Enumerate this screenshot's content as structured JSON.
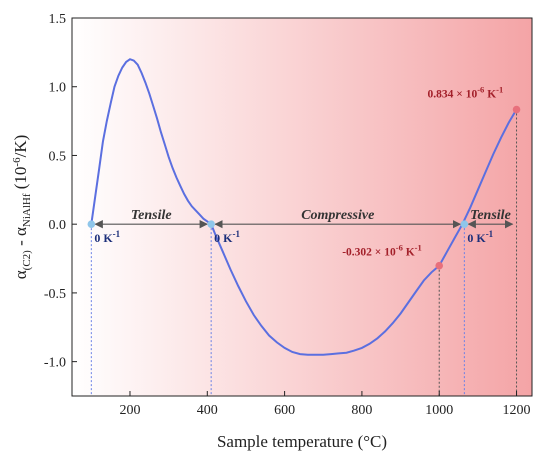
{
  "chart_data": {
    "type": "line",
    "xlabel": "Sample temperature (°C)",
    "ylabel_main": "α",
    "ylabel_sub1": "(C2)",
    "ylabel_mid": " - α",
    "ylabel_sub2": "NiAlHf",
    "ylabel_unit_a": " (10",
    "ylabel_unit_exp": "-6",
    "ylabel_unit_b": "/K)",
    "xlim": [
      50,
      1240
    ],
    "ylim": [
      -1.25,
      1.5
    ],
    "x_ticks": [
      200,
      400,
      600,
      800,
      1000,
      1200
    ],
    "x_tick_labels": [
      "200",
      "400",
      "600",
      "800",
      "1000",
      "1200"
    ],
    "y_ticks": [
      1.5,
      1.0,
      0.5,
      0.0,
      -0.5,
      -1.0
    ],
    "y_tick_labels": [
      "1.5",
      "1.0",
      "0.5",
      "0.0",
      "-0.5",
      "-1.0"
    ],
    "series": [
      {
        "color": "#5b6fe0",
        "x": [
          100,
          110,
          120,
          130,
          140,
          150,
          160,
          170,
          180,
          190,
          200,
          210,
          220,
          230,
          240,
          250,
          260,
          270,
          280,
          290,
          300,
          310,
          320,
          330,
          340,
          350,
          360,
          370,
          380,
          390,
          400,
          410,
          420,
          440,
          460,
          480,
          500,
          520,
          540,
          560,
          580,
          600,
          620,
          640,
          660,
          680,
          700,
          720,
          740,
          760,
          780,
          800,
          820,
          840,
          860,
          880,
          900,
          920,
          940,
          960,
          980,
          1000,
          1020,
          1040,
          1060,
          1080,
          1100,
          1120,
          1140,
          1160,
          1180,
          1200
        ],
        "y": [
          0.0,
          0.2,
          0.4,
          0.6,
          0.75,
          0.88,
          1.0,
          1.08,
          1.14,
          1.18,
          1.2,
          1.19,
          1.16,
          1.1,
          1.03,
          0.95,
          0.86,
          0.77,
          0.67,
          0.58,
          0.49,
          0.41,
          0.34,
          0.28,
          0.22,
          0.17,
          0.13,
          0.1,
          0.07,
          0.04,
          0.02,
          0.0,
          -0.07,
          -0.2,
          -0.33,
          -0.45,
          -0.56,
          -0.66,
          -0.74,
          -0.81,
          -0.86,
          -0.9,
          -0.93,
          -0.945,
          -0.95,
          -0.95,
          -0.95,
          -0.945,
          -0.94,
          -0.935,
          -0.92,
          -0.9,
          -0.87,
          -0.83,
          -0.78,
          -0.72,
          -0.65,
          -0.57,
          -0.49,
          -0.41,
          -0.35,
          -0.302,
          -0.2,
          -0.1,
          0.0,
          0.12,
          0.25,
          0.38,
          0.51,
          0.63,
          0.74,
          0.834
        ]
      }
    ],
    "regions": [
      {
        "label": "Tensile",
        "x_start": 100,
        "x_end": 410
      },
      {
        "label": "Compressive",
        "x_start": 410,
        "x_end": 1065
      },
      {
        "label": "Tensile",
        "x_start": 1065,
        "x_end": 1200
      }
    ],
    "zero_points": [
      {
        "x": 100,
        "y": 0.0,
        "label": "0 K",
        "exp": "-1"
      },
      {
        "x": 410,
        "y": 0.0,
        "label": "0 K",
        "exp": "-1"
      },
      {
        "x": 1065,
        "y": 0.0,
        "label": "0 K",
        "exp": "-1"
      }
    ],
    "value_points": [
      {
        "x": 1000,
        "y": -0.302,
        "label": "-0.302 × 10",
        "exp1": "-6",
        "unit": " K",
        "exp2": "-1"
      },
      {
        "x": 1200,
        "y": 0.834,
        "label": "0.834 × 10",
        "exp1": "-6",
        "unit": " K",
        "exp2": "-1"
      }
    ],
    "colors": {
      "line": "#5b6fe0",
      "zero_marker": "#8fc6ea",
      "value_marker": "#e8707c",
      "bg_start": "#ffffff",
      "bg_end": "#f4a4a6"
    }
  }
}
